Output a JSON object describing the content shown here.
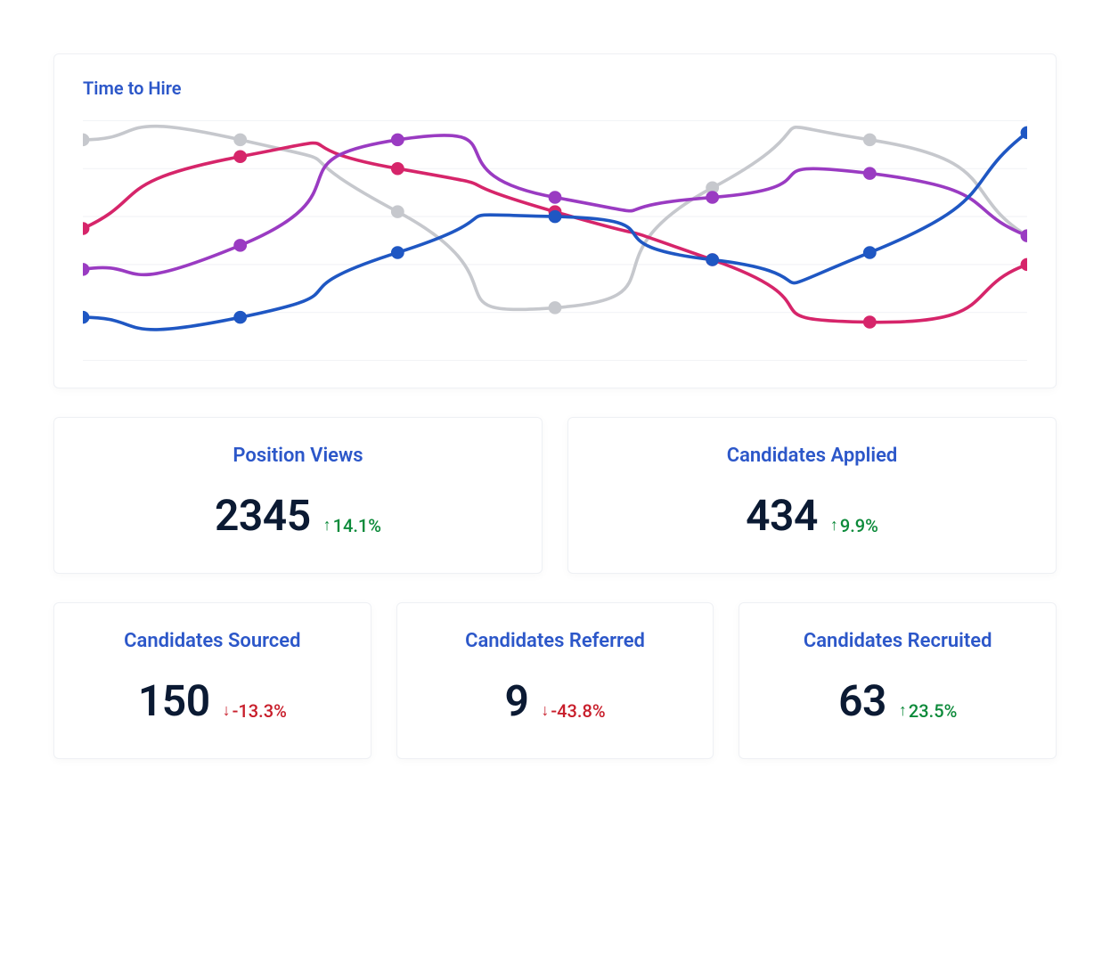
{
  "chart": {
    "title": "Time to Hire",
    "type": "line",
    "title_color": "#2c57c9",
    "title_fontsize": 20,
    "background_color": "#ffffff",
    "grid_color": "#f1f2f5",
    "grid_ylines": [
      0,
      20,
      40,
      60,
      80,
      100
    ],
    "ylim": [
      0,
      100
    ],
    "x_points": 6,
    "line_width": 3.5,
    "marker_radius": 7,
    "series": [
      {
        "name": "grey",
        "color": "#c6c8cd",
        "values": [
          92,
          92,
          62,
          22,
          72,
          92,
          52
        ]
      },
      {
        "name": "magenta",
        "color": "#d6256a",
        "values": [
          55,
          85,
          80,
          62,
          42,
          16,
          40
        ]
      },
      {
        "name": "purple",
        "color": "#9a3bc2",
        "values": [
          38,
          48,
          92,
          68,
          68,
          78,
          52
        ]
      },
      {
        "name": "blue",
        "color": "#1f57c3",
        "values": [
          18,
          18,
          45,
          60,
          42,
          45,
          95
        ]
      }
    ]
  },
  "metrics_row1": [
    {
      "title": "Position Views",
      "value": "2345",
      "delta": "14.1%",
      "direction": "up"
    },
    {
      "title": "Candidates Applied",
      "value": "434",
      "delta": "9.9%",
      "direction": "up"
    }
  ],
  "metrics_row2": [
    {
      "title": "Candidates Sourced",
      "value": "150",
      "delta": "-13.3%",
      "direction": "down"
    },
    {
      "title": "Candidates Referred",
      "value": "9",
      "delta": "-43.8%",
      "direction": "down"
    },
    {
      "title": "Candidates Recruited",
      "value": "63",
      "delta": "23.5%",
      "direction": "up"
    }
  ],
  "colors": {
    "title": "#2c57c9",
    "value": "#0b1a33",
    "up": "#0c8a3a",
    "down": "#c81e2b",
    "card_border": "#eef0f4"
  },
  "typography": {
    "metric_title_fontsize": 22,
    "metric_value_fontsize": 48,
    "metric_delta_fontsize": 20
  }
}
